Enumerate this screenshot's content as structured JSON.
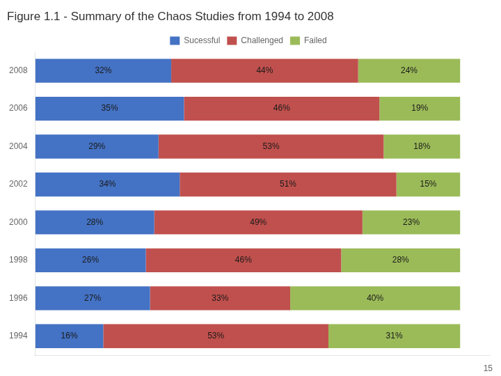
{
  "chart_data": {
    "type": "bar",
    "orientation": "horizontal",
    "stacked": true,
    "title": "Figure 1.1 - Summary of the Chaos Studies from 1994 to 2008",
    "categories": [
      "2008",
      "2006",
      "2004",
      "2002",
      "2000",
      "1998",
      "1996",
      "1994"
    ],
    "series": [
      {
        "name": "Sucessful",
        "color": "#4472C4",
        "values": [
          32,
          35,
          29,
          34,
          28,
          26,
          27,
          16
        ],
        "value_labels": [
          "32%",
          "35%",
          "29%",
          "34%",
          "28%",
          "26%",
          "27%",
          "16%"
        ]
      },
      {
        "name": "Challenged",
        "color": "#C0504D",
        "values": [
          44,
          46,
          53,
          51,
          49,
          46,
          33,
          53
        ],
        "value_labels": [
          "44%",
          "46%",
          "53%",
          "51%",
          "49%",
          "46%",
          "33%",
          "53%"
        ]
      },
      {
        "name": "Failed",
        "color": "#9BBB59",
        "values": [
          24,
          19,
          18,
          15,
          23,
          28,
          40,
          31
        ],
        "value_labels": [
          "24%",
          "19%",
          "18%",
          "15%",
          "23%",
          "28%",
          "40%",
          "31%"
        ]
      }
    ],
    "xlim": [
      0,
      107
    ],
    "data_labels": true,
    "tick_labels": "y",
    "grid": false,
    "legend": "top",
    "annotations": [
      {
        "text": "15"
      }
    ]
  }
}
